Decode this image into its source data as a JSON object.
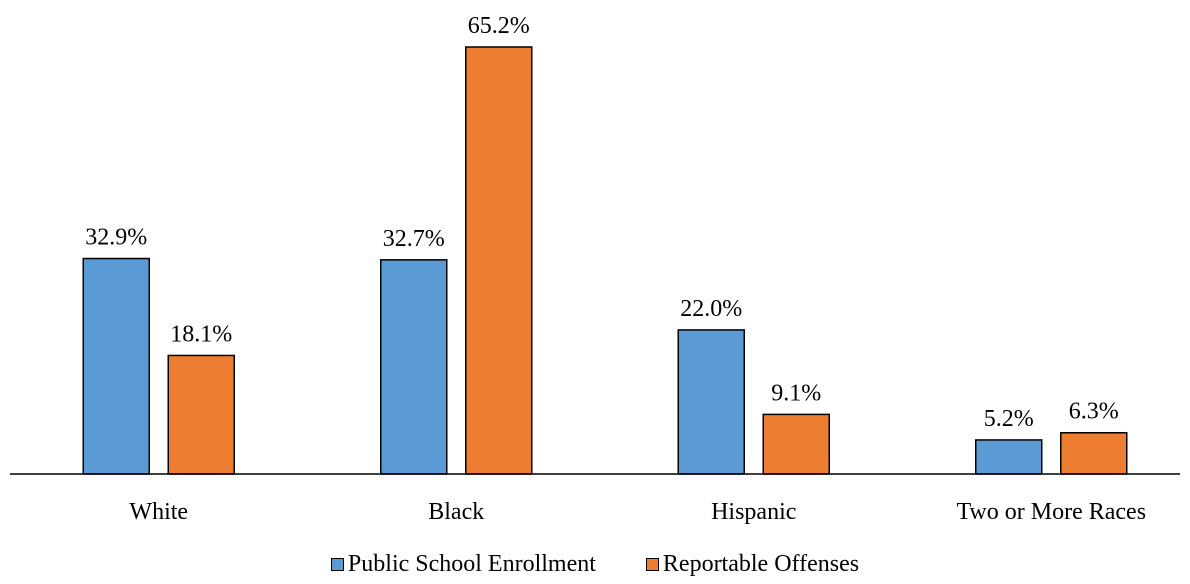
{
  "chart_data": {
    "type": "bar",
    "categories": [
      "White",
      "Black",
      "Hispanic",
      "Two or More Races"
    ],
    "series": [
      {
        "name": "Public School Enrollment",
        "values": [
          32.9,
          32.7,
          22.0,
          5.2
        ],
        "labels": [
          "32.9%",
          "32.7%",
          "22.0%",
          "5.2%"
        ],
        "color": "#5B9BD5"
      },
      {
        "name": "Reportable Offenses",
        "values": [
          18.1,
          65.2,
          9.1,
          6.3
        ],
        "labels": [
          "18.1%",
          "65.2%",
          "9.1%",
          "6.3%"
        ],
        "color": "#ED7D31"
      }
    ],
    "title": "",
    "xlabel": "",
    "ylabel": "",
    "ylim": [
      0,
      65.2
    ],
    "grid": false,
    "legend_position": "bottom"
  }
}
